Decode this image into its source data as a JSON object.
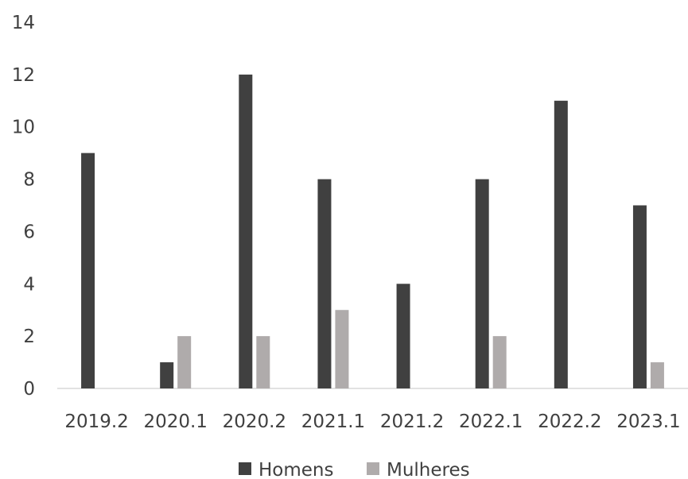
{
  "chart_data": {
    "type": "bar",
    "title": "",
    "xlabel": "",
    "ylabel": "",
    "categories": [
      "2019.2",
      "2020.1",
      "2020.2",
      "2021.1",
      "2021.2",
      "2022.1",
      "2022.2",
      "2023.1"
    ],
    "series": [
      {
        "name": "Homens",
        "color": "#404040",
        "values": [
          9,
          1,
          12,
          8,
          4,
          8,
          11,
          7
        ]
      },
      {
        "name": "Mulheres",
        "color": "#afabab",
        "values": [
          0,
          2,
          2,
          3,
          0,
          2,
          0,
          1
        ]
      }
    ],
    "ylim": [
      0,
      14
    ],
    "yticks": [
      0,
      2,
      4,
      6,
      8,
      10,
      12,
      14
    ],
    "grid": false,
    "legend": "bottom"
  }
}
